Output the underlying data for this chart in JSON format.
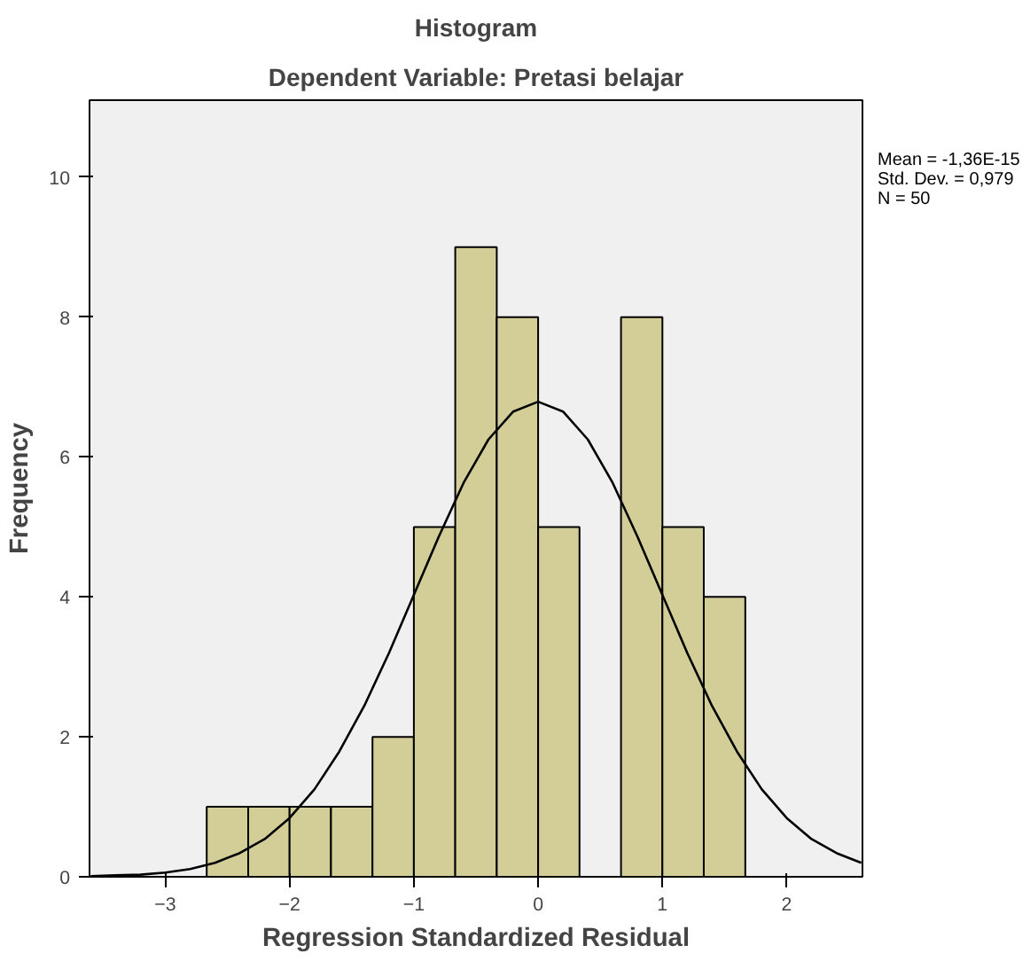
{
  "chart_data": {
    "type": "histogram",
    "title": "Histogram",
    "subtitle": "Dependent Variable: Pretasi belajar",
    "xlabel": "Regression Standardized Residual",
    "ylabel": "Frequency",
    "bins": [
      -2.667,
      -2.333,
      -2.0,
      -1.667,
      -1.333,
      -1.0,
      -0.667,
      -0.333,
      0.0,
      0.333,
      0.667,
      1.0,
      1.333,
      1.667
    ],
    "values": [
      1,
      1,
      1,
      1,
      2,
      5,
      9,
      8,
      5,
      0,
      8,
      5,
      4
    ],
    "color": "#d3ce97",
    "series": [
      {
        "type": "line",
        "color": "#000000",
        "x": [
          -3.6,
          -3.4,
          -3.2,
          -3.0,
          -2.8,
          -2.6,
          -2.4,
          -2.2,
          -2.0,
          -1.8,
          -1.6,
          -1.4,
          -1.2,
          -1.0,
          -0.8,
          -0.6,
          -0.4,
          -0.2,
          0.0,
          0.2,
          0.4,
          0.6,
          0.8,
          1.0,
          1.2,
          1.4,
          1.6,
          1.8,
          2.0,
          2.2,
          2.4,
          2.6
        ],
        "values": [
          0.01,
          0.02,
          0.03,
          0.06,
          0.11,
          0.2,
          0.34,
          0.54,
          0.84,
          1.25,
          1.79,
          2.44,
          3.2,
          4.03,
          4.86,
          5.63,
          6.25,
          6.65,
          6.79,
          6.65,
          6.25,
          5.63,
          4.86,
          4.03,
          3.2,
          2.44,
          1.79,
          1.25,
          0.84,
          0.54,
          0.34,
          0.2
        ]
      }
    ],
    "xlim": [
      -3.61,
      2.61
    ],
    "ylim": [
      0,
      11.1
    ],
    "xticks": [
      -3,
      -2,
      -1,
      0,
      1,
      2
    ],
    "yticks": [
      0,
      2,
      4,
      6,
      8,
      10
    ],
    "grid": false,
    "annotations": [
      "Mean = -1,36E-15",
      "Std. Dev. = 0,979",
      "N = 50"
    ]
  }
}
